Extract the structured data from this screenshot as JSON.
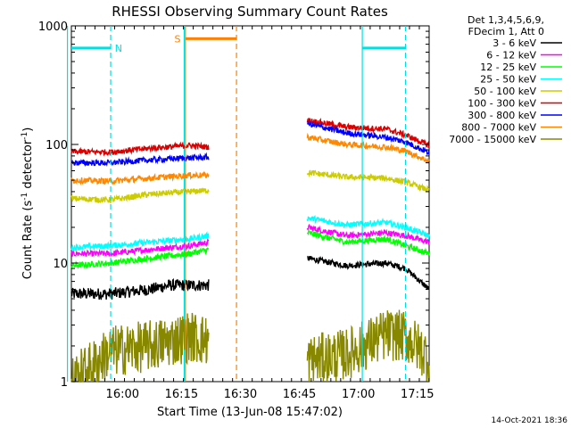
{
  "chart_data": {
    "type": "line",
    "title": "RHESSI Observing Summary Count Rates",
    "xlabel": "Start Time (13-Jun-08 15:47:02)",
    "ylabel_main": "Count Rate (s",
    "ylabel_exp1": "-1",
    "ylabel_mid": " detector",
    "ylabel_exp2": "-1",
    "ylabel_end": ")",
    "yscale": "log",
    "ylim": [
      1,
      1000
    ],
    "xlim_min": [
      0,
      91
    ],
    "x_ticks": [
      {
        "min": 13,
        "label": "16:00"
      },
      {
        "min": 28,
        "label": "16:15"
      },
      {
        "min": 43,
        "label": "16:30"
      },
      {
        "min": 58,
        "label": "16:45"
      },
      {
        "min": 73,
        "label": "17:00"
      },
      {
        "min": 88,
        "label": "17:15"
      }
    ],
    "y_ticks": [
      {
        "value": 1,
        "label": "1"
      },
      {
        "value": 10,
        "label": "10"
      },
      {
        "value": 100,
        "label": "100"
      },
      {
        "value": 1000,
        "label": "1000"
      }
    ],
    "legend_header": [
      "Det 1,3,4,5,6,9,",
      "FDecim 1, Att 0"
    ],
    "series": [
      {
        "name": "3 - 6 keV",
        "color": "#000000",
        "segments": [
          {
            "x": [
              0,
              10,
              20,
              25,
              35
            ],
            "y": [
              5.5,
              5.5,
              6.0,
              6.5,
              6.5
            ]
          },
          {
            "x": [
              60,
              70,
              80,
              85,
              91
            ],
            "y": [
              11,
              9.5,
              10,
              9,
              6
            ]
          }
        ]
      },
      {
        "name": "6 - 12 keV",
        "color": "#ff00ff",
        "segments": [
          {
            "x": [
              0,
              10,
              20,
              30,
              35
            ],
            "y": [
              12,
              12,
              13,
              14,
              15
            ]
          },
          {
            "x": [
              60,
              70,
              80,
              85,
              91
            ],
            "y": [
              20,
              17,
              18,
              17,
              15
            ]
          }
        ]
      },
      {
        "name": "12 - 25 keV",
        "color": "#00ff00",
        "segments": [
          {
            "x": [
              0,
              10,
              20,
              30,
              35
            ],
            "y": [
              9.5,
              10,
              11,
              12,
              13
            ]
          },
          {
            "x": [
              60,
              70,
              80,
              85,
              91
            ],
            "y": [
              18,
              15,
              16,
              14,
              12
            ]
          }
        ]
      },
      {
        "name": "25 - 50 keV",
        "color": "#00ffff",
        "segments": [
          {
            "x": [
              0,
              10,
              20,
              30,
              35
            ],
            "y": [
              13.5,
              14,
              15,
              16,
              17
            ]
          },
          {
            "x": [
              60,
              70,
              80,
              85,
              91
            ],
            "y": [
              24,
              21,
              22,
              20,
              17
            ]
          }
        ]
      },
      {
        "name": "50 - 100 keV",
        "color": "#cccc00",
        "segments": [
          {
            "x": [
              0,
              10,
              20,
              30,
              35
            ],
            "y": [
              35,
              34,
              38,
              40,
              41
            ]
          },
          {
            "x": [
              60,
              70,
              80,
              85,
              91
            ],
            "y": [
              58,
              53,
              52,
              48,
              41
            ]
          }
        ]
      },
      {
        "name": "100 - 300 keV",
        "color": "#dd0000",
        "segments": [
          {
            "x": [
              0,
              10,
              20,
              30,
              35
            ],
            "y": [
              87,
              86,
              93,
              98,
              95
            ]
          },
          {
            "x": [
              60,
              70,
              80,
              85,
              91
            ],
            "y": [
              160,
              140,
              135,
              120,
              98
            ]
          }
        ]
      },
      {
        "name": "300 - 800 keV",
        "color": "#0000ff",
        "segments": [
          {
            "x": [
              0,
              10,
              20,
              30,
              35
            ],
            "y": [
              70,
              70,
              74,
              77,
              78
            ]
          },
          {
            "x": [
              60,
              70,
              80,
              85,
              91
            ],
            "y": [
              150,
              125,
              115,
              105,
              85
            ]
          }
        ]
      },
      {
        "name": "800 - 7000 keV",
        "color": "#ff8800",
        "segments": [
          {
            "x": [
              0,
              10,
              20,
              30,
              35
            ],
            "y": [
              50,
              49,
              52,
              55,
              55
            ]
          },
          {
            "x": [
              60,
              70,
              80,
              85,
              91
            ],
            "y": [
              115,
              100,
              95,
              88,
              72
            ]
          }
        ]
      },
      {
        "name": "7000 - 15000 keV",
        "color": "#888800",
        "segments": [
          {
            "x": [
              0,
              10,
              20,
              30,
              35
            ],
            "y": [
              1.0,
              1.8,
              2.0,
              2.4,
              2.2
            ]
          },
          {
            "x": [
              60,
              70,
              80,
              85,
              91
            ],
            "y": [
              1.5,
              1.7,
              2.5,
              2.4,
              1.6
            ]
          }
        ]
      }
    ],
    "markers": [
      {
        "label": "N",
        "color": "#00e0e0",
        "bar": [
          0,
          10
        ],
        "level": 650,
        "edges": [
          -1,
          10
        ],
        "edge_styles": [
          "solid",
          "dashed"
        ],
        "label_at": 12
      },
      {
        "label": "S",
        "color": "#ff7f00",
        "bar": [
          29,
          42
        ],
        "level": 780,
        "edges": [
          29,
          42
        ],
        "edge_styles": [
          "solid",
          "dashed"
        ],
        "label_at": 27
      },
      {
        "label": "",
        "color": "#00e0e0",
        "bar": [
          74,
          85
        ],
        "level": 650,
        "edges": [
          74,
          85
        ],
        "edge_styles": [
          "solid",
          "dashed"
        ],
        "label_at": 0
      }
    ],
    "vertical_lines": [
      {
        "min": 28.7,
        "color": "#00e0e0",
        "style": "solid"
      }
    ]
  },
  "footer_timestamp": "14-Oct-2021 18:36"
}
